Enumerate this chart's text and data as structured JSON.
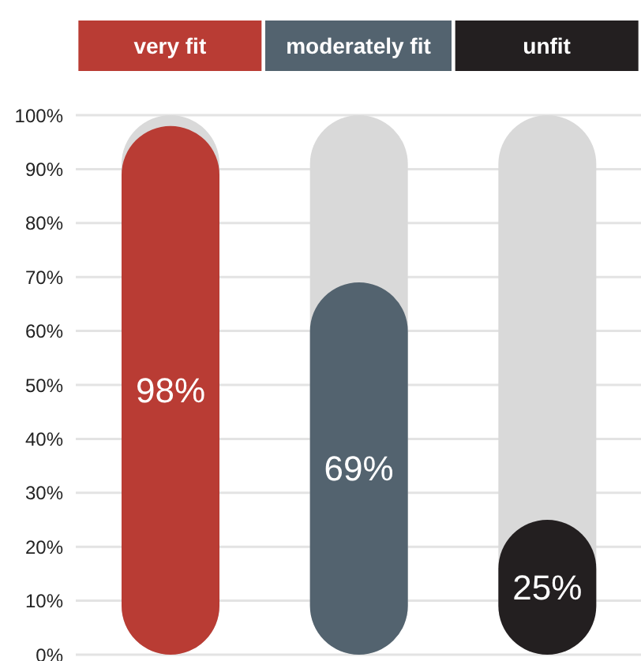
{
  "chart_data": {
    "type": "bar",
    "categories": [
      "very fit",
      "moderately fit",
      "unfit"
    ],
    "values": [
      98,
      69,
      25
    ],
    "value_labels": [
      "98%",
      "69%",
      "25%"
    ],
    "colors": [
      "#b93c34",
      "#53636f",
      "#231f20"
    ],
    "ylim": [
      0,
      100
    ],
    "yticks": [
      {
        "value": 0,
        "label": "0%"
      },
      {
        "value": 10,
        "label": "10%"
      },
      {
        "value": 20,
        "label": "20%"
      },
      {
        "value": 30,
        "label": "30%"
      },
      {
        "value": 40,
        "label": "40%"
      },
      {
        "value": 50,
        "label": "50%"
      },
      {
        "value": 60,
        "label": "60%"
      },
      {
        "value": 70,
        "label": "70%"
      },
      {
        "value": 80,
        "label": "80%"
      },
      {
        "value": 90,
        "label": "90%"
      },
      {
        "value": 100,
        "label": "100%"
      }
    ],
    "grid": "y"
  }
}
